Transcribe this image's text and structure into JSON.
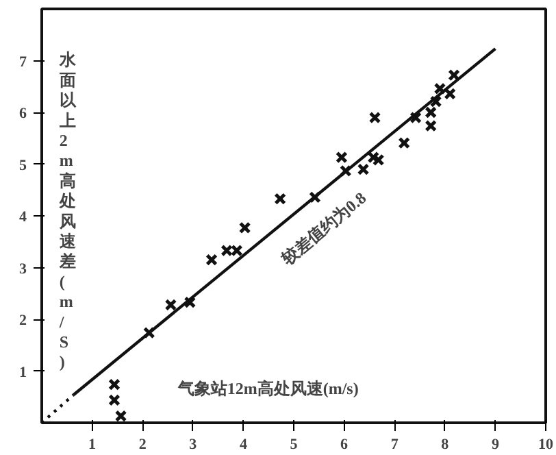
{
  "chart_data": {
    "type": "scatter",
    "xlabel": "气象站12m高处风速(m/s)",
    "ylabel": "水面以上2m高处风速差(m/S)",
    "xlim": [
      0,
      10
    ],
    "ylim": [
      0,
      8
    ],
    "xticks": [
      1,
      2,
      3,
      4,
      5,
      6,
      7,
      8,
      9,
      10
    ],
    "yticks": [
      1,
      2,
      3,
      4,
      5,
      6,
      7
    ],
    "grid": false,
    "series": [
      {
        "color": "#111111",
        "marker": "cross",
        "x": [
          1.44,
          1.44,
          1.57,
          2.13,
          2.56,
          2.94,
          3.37,
          3.67,
          3.87,
          4.03,
          4.73,
          5.42,
          5.95,
          6.03,
          6.38,
          6.61,
          6.58,
          6.68,
          7.19,
          7.42,
          7.72,
          7.72,
          7.82,
          7.9,
          8.1,
          8.18
        ],
        "values": [
          0.74,
          0.44,
          0.13,
          1.74,
          2.28,
          2.33,
          3.15,
          3.33,
          3.33,
          3.77,
          4.33,
          4.36,
          5.13,
          4.87,
          4.9,
          5.9,
          5.13,
          5.08,
          5.41,
          5.9,
          6.0,
          5.74,
          6.21,
          6.46,
          6.36,
          6.72
        ]
      },
      {
        "type": "line",
        "line_style": "dotted",
        "color": "#111111",
        "x": [
          0,
          0.63
        ],
        "values": [
          0,
          0.54
        ]
      },
      {
        "type": "line",
        "line_style": "solid",
        "color": "#111111",
        "x": [
          0.63,
          9.0
        ],
        "values": [
          0.54,
          7.23
        ]
      }
    ],
    "annotations": [
      "较差值约为0.8"
    ]
  }
}
